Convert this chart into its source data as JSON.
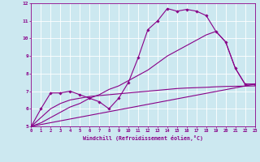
{
  "bg_color": "#cce8f0",
  "line_color": "#880088",
  "grid_color": "#ffffff",
  "spine_color": "#880088",
  "xlim": [
    0,
    23
  ],
  "ylim": [
    5,
    12
  ],
  "xticks": [
    0,
    1,
    2,
    3,
    4,
    5,
    6,
    7,
    8,
    9,
    10,
    11,
    12,
    13,
    14,
    15,
    16,
    17,
    18,
    19,
    20,
    21,
    22,
    23
  ],
  "yticks": [
    5,
    6,
    7,
    8,
    9,
    10,
    11,
    12
  ],
  "xlabel": "Windchill (Refroidissement éolien,°C)",
  "lines": [
    {
      "x": [
        0,
        1,
        2,
        3,
        4,
        5,
        6,
        7,
        8,
        9,
        10,
        11,
        12,
        13,
        14,
        15,
        16,
        17,
        18,
        19,
        20,
        21,
        22,
        23
      ],
      "y": [
        5.0,
        6.0,
        6.9,
        6.9,
        7.0,
        6.8,
        6.6,
        6.4,
        6.0,
        6.6,
        7.5,
        8.9,
        10.5,
        11.0,
        11.7,
        11.55,
        11.65,
        11.55,
        11.3,
        10.4,
        9.8,
        8.3,
        7.4,
        7.4
      ],
      "marker": true
    },
    {
      "x": [
        0,
        1,
        2,
        3,
        4,
        5,
        6,
        7,
        8,
        9,
        10,
        11,
        12,
        13,
        14,
        15,
        16,
        17,
        18,
        19,
        20,
        21,
        22,
        23
      ],
      "y": [
        5.0,
        5.2,
        5.5,
        5.8,
        6.1,
        6.3,
        6.6,
        6.8,
        7.1,
        7.3,
        7.6,
        7.9,
        8.2,
        8.6,
        9.0,
        9.3,
        9.6,
        9.9,
        10.2,
        10.4,
        9.8,
        8.3,
        7.4,
        7.4
      ],
      "marker": false
    },
    {
      "x": [
        0,
        23
      ],
      "y": [
        5.0,
        7.4
      ],
      "marker": false
    },
    {
      "x": [
        0,
        1,
        2,
        3,
        4,
        5,
        6,
        7,
        8,
        9,
        10,
        11,
        12,
        13,
        14,
        15,
        16,
        17,
        18,
        19,
        20,
        21,
        22,
        23
      ],
      "y": [
        5.0,
        5.5,
        6.0,
        6.3,
        6.5,
        6.6,
        6.7,
        6.75,
        6.8,
        6.85,
        6.9,
        6.95,
        7.0,
        7.05,
        7.1,
        7.15,
        7.18,
        7.2,
        7.22,
        7.25,
        7.27,
        7.28,
        7.29,
        7.3
      ],
      "marker": false
    }
  ]
}
